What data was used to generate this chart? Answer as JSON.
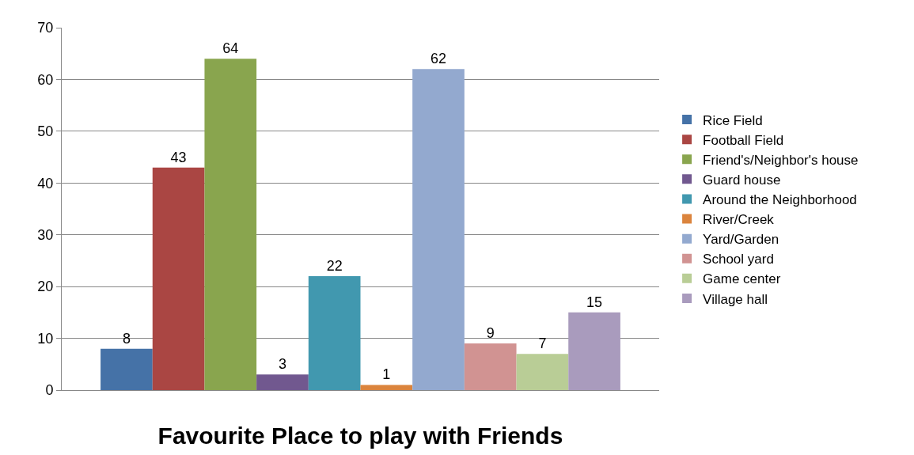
{
  "chart_data": {
    "type": "bar",
    "title": "Favourite Place to play with Friends",
    "categories": [
      null
    ],
    "series": [
      {
        "name": "Rice Field",
        "color": "#4572a7",
        "values": [
          8
        ]
      },
      {
        "name": "Football Field",
        "color": "#aa4643",
        "values": [
          43
        ]
      },
      {
        "name": "Friend's/Neighbor's house",
        "color": "#89a54e",
        "values": [
          64
        ]
      },
      {
        "name": "Guard house",
        "color": "#71588f",
        "values": [
          3
        ]
      },
      {
        "name": "Around the Neighborhood",
        "color": "#4198af",
        "values": [
          22
        ]
      },
      {
        "name": "River/Creek",
        "color": "#db843d",
        "values": [
          1
        ]
      },
      {
        "name": "Yard/Garden",
        "color": "#93a9cf",
        "values": [
          62
        ]
      },
      {
        "name": "School yard",
        "color": "#d19392",
        "values": [
          9
        ]
      },
      {
        "name": "Game center",
        "color": "#b9cd96",
        "values": [
          7
        ]
      },
      {
        "name": "Village hall",
        "color": "#a99bbd",
        "values": [
          15
        ]
      }
    ],
    "ylim": [
      0,
      70
    ],
    "yticks": [
      0,
      10,
      20,
      30,
      40,
      50,
      60,
      70
    ],
    "grid": "y",
    "legend": "right",
    "data_labels": true
  }
}
